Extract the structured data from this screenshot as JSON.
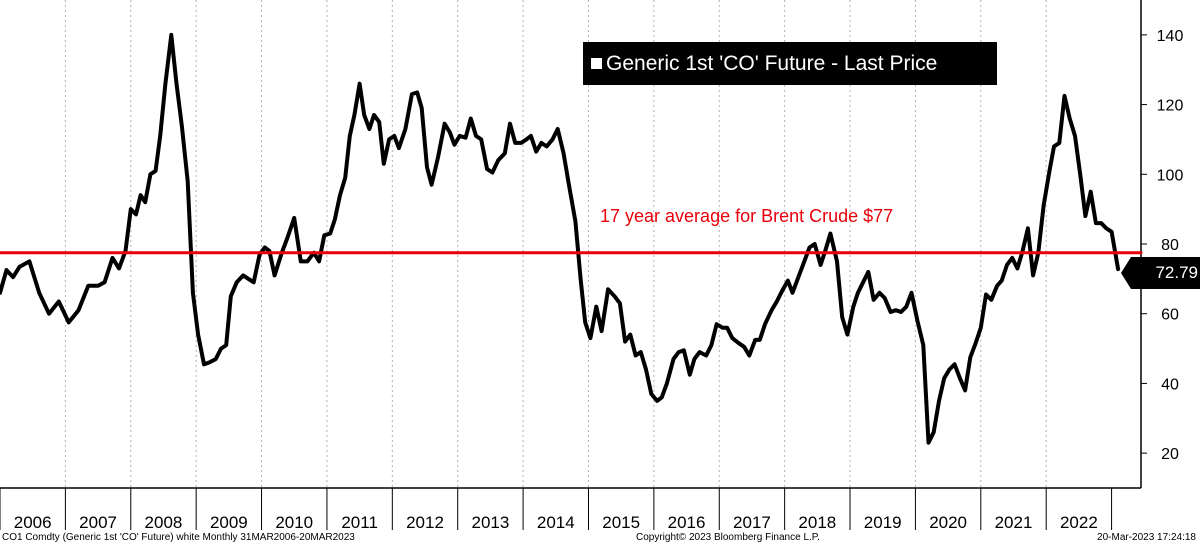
{
  "chart_data": {
    "type": "line",
    "title": "",
    "xlabel": "",
    "ylabel": "",
    "ylim": [
      10,
      150
    ],
    "yticks": [
      20,
      40,
      60,
      80,
      100,
      120,
      140
    ],
    "x_categories": [
      "2006",
      "2007",
      "2008",
      "2009",
      "2010",
      "2011",
      "2012",
      "2013",
      "2014",
      "2015",
      "2016",
      "2017",
      "2018",
      "2019",
      "2020",
      "2021",
      "2022"
    ],
    "grid": "vertical-dashed",
    "axis_side": "right",
    "legend": {
      "position": "top-right",
      "label": "Generic 1st 'CO' Future - Last Price"
    },
    "series": [
      {
        "name": "Generic 1st 'CO' Future - Last Price",
        "color": "#000000",
        "points": [
          [
            2006.0,
            66
          ],
          [
            2006.1,
            72.5
          ],
          [
            2006.2,
            70.5
          ],
          [
            2006.3,
            73.5
          ],
          [
            2006.45,
            75
          ],
          [
            2006.6,
            66
          ],
          [
            2006.75,
            60
          ],
          [
            2006.9,
            63.5
          ],
          [
            2007.05,
            57.5
          ],
          [
            2007.2,
            61
          ],
          [
            2007.35,
            68
          ],
          [
            2007.5,
            68
          ],
          [
            2007.6,
            69
          ],
          [
            2007.72,
            76
          ],
          [
            2007.82,
            73
          ],
          [
            2007.92,
            78
          ],
          [
            2008.0,
            90
          ],
          [
            2008.08,
            88.5
          ],
          [
            2008.15,
            94
          ],
          [
            2008.22,
            92
          ],
          [
            2008.3,
            100
          ],
          [
            2008.38,
            101
          ],
          [
            2008.45,
            111
          ],
          [
            2008.53,
            126
          ],
          [
            2008.62,
            140
          ],
          [
            2008.7,
            126
          ],
          [
            2008.78,
            114
          ],
          [
            2008.87,
            98
          ],
          [
            2008.95,
            66
          ],
          [
            2009.03,
            54
          ],
          [
            2009.12,
            45.5
          ],
          [
            2009.2,
            46
          ],
          [
            2009.3,
            47
          ],
          [
            2009.38,
            50
          ],
          [
            2009.46,
            51
          ],
          [
            2009.53,
            65
          ],
          [
            2009.62,
            69
          ],
          [
            2009.72,
            71
          ],
          [
            2009.8,
            70
          ],
          [
            2009.88,
            69
          ],
          [
            2009.97,
            77
          ],
          [
            2010.05,
            79
          ],
          [
            2010.12,
            78
          ],
          [
            2010.2,
            71
          ],
          [
            2010.3,
            77
          ],
          [
            2010.4,
            82
          ],
          [
            2010.5,
            87.5
          ],
          [
            2010.6,
            75
          ],
          [
            2010.7,
            75
          ],
          [
            2010.8,
            77.5
          ],
          [
            2010.88,
            75
          ],
          [
            2010.96,
            82.5
          ],
          [
            2011.05,
            83
          ],
          [
            2011.12,
            87
          ],
          [
            2011.2,
            94
          ],
          [
            2011.28,
            99
          ],
          [
            2011.35,
            111
          ],
          [
            2011.42,
            117
          ],
          [
            2011.5,
            126
          ],
          [
            2011.57,
            117
          ],
          [
            2011.65,
            113
          ],
          [
            2011.72,
            117
          ],
          [
            2011.8,
            115
          ],
          [
            2011.87,
            103
          ],
          [
            2011.95,
            110
          ],
          [
            2012.03,
            111
          ],
          [
            2012.1,
            107.5
          ],
          [
            2012.2,
            113
          ],
          [
            2012.3,
            123
          ],
          [
            2012.38,
            123.5
          ],
          [
            2012.45,
            119
          ],
          [
            2012.53,
            102
          ],
          [
            2012.6,
            97
          ],
          [
            2012.7,
            105
          ],
          [
            2012.8,
            114.5
          ],
          [
            2012.88,
            112
          ],
          [
            2012.95,
            108.5
          ],
          [
            2013.03,
            111
          ],
          [
            2013.12,
            110.5
          ],
          [
            2013.2,
            116
          ],
          [
            2013.28,
            111
          ],
          [
            2013.36,
            110
          ],
          [
            2013.45,
            101.5
          ],
          [
            2013.53,
            100.5
          ],
          [
            2013.62,
            104
          ],
          [
            2013.72,
            106
          ],
          [
            2013.8,
            114.5
          ],
          [
            2013.88,
            109
          ],
          [
            2013.97,
            109
          ],
          [
            2014.05,
            110
          ],
          [
            2014.12,
            111
          ],
          [
            2014.2,
            106.5
          ],
          [
            2014.28,
            109
          ],
          [
            2014.36,
            108
          ],
          [
            2014.45,
            110
          ],
          [
            2014.53,
            113
          ],
          [
            2014.62,
            106
          ],
          [
            2014.7,
            97
          ],
          [
            2014.8,
            86.5
          ],
          [
            2014.88,
            70
          ],
          [
            2014.95,
            57.5
          ],
          [
            2015.03,
            53
          ],
          [
            2015.12,
            62
          ],
          [
            2015.2,
            55
          ],
          [
            2015.3,
            67
          ],
          [
            2015.4,
            65
          ],
          [
            2015.48,
            63
          ],
          [
            2015.56,
            52
          ],
          [
            2015.64,
            54
          ],
          [
            2015.72,
            48
          ],
          [
            2015.8,
            49
          ],
          [
            2015.88,
            44
          ],
          [
            2015.96,
            37
          ],
          [
            2016.05,
            35
          ],
          [
            2016.12,
            36
          ],
          [
            2016.2,
            40
          ],
          [
            2016.3,
            47
          ],
          [
            2016.38,
            49
          ],
          [
            2016.46,
            49.5
          ],
          [
            2016.55,
            42.5
          ],
          [
            2016.62,
            47
          ],
          [
            2016.7,
            49
          ],
          [
            2016.8,
            48
          ],
          [
            2016.88,
            51
          ],
          [
            2016.96,
            57
          ],
          [
            2017.05,
            56
          ],
          [
            2017.12,
            56
          ],
          [
            2017.2,
            53
          ],
          [
            2017.3,
            51.5
          ],
          [
            2017.38,
            50.5
          ],
          [
            2017.46,
            48
          ],
          [
            2017.55,
            52.5
          ],
          [
            2017.62,
            52.5
          ],
          [
            2017.7,
            57
          ],
          [
            2017.8,
            61
          ],
          [
            2017.88,
            63.5
          ],
          [
            2017.96,
            66.5
          ],
          [
            2018.05,
            69.5
          ],
          [
            2018.12,
            66
          ],
          [
            2018.2,
            70
          ],
          [
            2018.3,
            75
          ],
          [
            2018.38,
            79
          ],
          [
            2018.46,
            80
          ],
          [
            2018.55,
            74
          ],
          [
            2018.62,
            78
          ],
          [
            2018.7,
            83
          ],
          [
            2018.8,
            75
          ],
          [
            2018.88,
            59
          ],
          [
            2018.96,
            54
          ],
          [
            2019.05,
            62
          ],
          [
            2019.12,
            66
          ],
          [
            2019.2,
            69
          ],
          [
            2019.28,
            72
          ],
          [
            2019.36,
            64
          ],
          [
            2019.45,
            66
          ],
          [
            2019.53,
            64.5
          ],
          [
            2019.62,
            60.5
          ],
          [
            2019.7,
            61
          ],
          [
            2019.78,
            60.5
          ],
          [
            2019.86,
            62
          ],
          [
            2019.94,
            66
          ],
          [
            2020.03,
            58
          ],
          [
            2020.12,
            51
          ],
          [
            2020.2,
            23
          ],
          [
            2020.28,
            26
          ],
          [
            2020.36,
            35
          ],
          [
            2020.44,
            41.5
          ],
          [
            2020.52,
            44
          ],
          [
            2020.6,
            45.5
          ],
          [
            2020.68,
            41.5
          ],
          [
            2020.76,
            38
          ],
          [
            2020.84,
            47.5
          ],
          [
            2020.92,
            51.5
          ],
          [
            2021.0,
            56
          ],
          [
            2021.08,
            65.5
          ],
          [
            2021.16,
            64
          ],
          [
            2021.25,
            68
          ],
          [
            2021.32,
            69.5
          ],
          [
            2021.4,
            74
          ],
          [
            2021.48,
            76
          ],
          [
            2021.56,
            73
          ],
          [
            2021.64,
            78
          ],
          [
            2021.72,
            84.5
          ],
          [
            2021.8,
            71
          ],
          [
            2021.88,
            77.5
          ],
          [
            2021.96,
            91
          ],
          [
            2022.05,
            101
          ],
          [
            2022.12,
            108
          ],
          [
            2022.2,
            109
          ],
          [
            2022.28,
            122.5
          ],
          [
            2022.36,
            116
          ],
          [
            2022.44,
            111
          ],
          [
            2022.52,
            100
          ],
          [
            2022.6,
            88
          ],
          [
            2022.68,
            95
          ],
          [
            2022.76,
            86
          ],
          [
            2022.84,
            86
          ],
          [
            2022.92,
            84.5
          ],
          [
            2023.0,
            83.5
          ],
          [
            2023.1,
            72.79
          ]
        ]
      },
      {
        "name": "",
        "color": "#e8000b",
        "points": [
          [
            2006.0,
            77.5
          ],
          [
            2023.45,
            77.5
          ]
        ]
      }
    ],
    "annotations": [
      {
        "text": "17 year average for Brent Crude $77",
        "color": "#e8000b"
      }
    ],
    "last_value_label": "72.79"
  },
  "footer": {
    "left": "CO1 Comdty (Generic 1st 'CO' Future) white  Monthly 31MAR2006-20MAR2023",
    "center": "Copyright© 2023 Bloomberg Finance L.P.",
    "right": "20-Mar-2023 17:24:18"
  }
}
